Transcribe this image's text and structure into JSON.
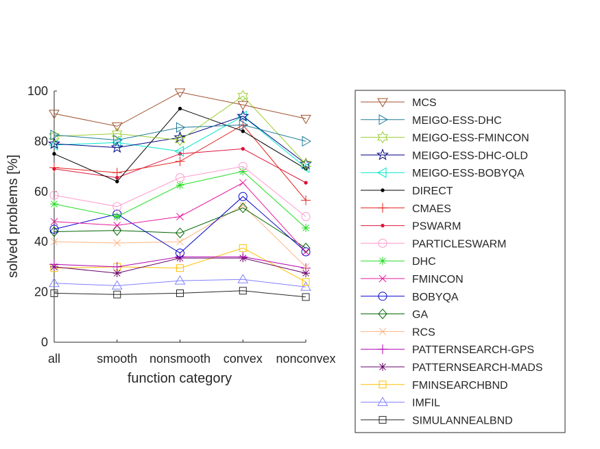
{
  "chart_data": {
    "type": "line",
    "title": "",
    "xlabel": "function category",
    "ylabel": "solved problems [%]",
    "categories": [
      "all",
      "smooth",
      "nonsmooth",
      "convex",
      "nonconvex"
    ],
    "ylim": [
      0,
      100
    ],
    "yticks": [
      0,
      20,
      40,
      60,
      80,
      100
    ],
    "grid": false,
    "legend_placement": "right outside",
    "series": [
      {
        "name": "MCS",
        "color": "#A0522D",
        "marker": "triangle-down",
        "values": [
          91,
          86,
          99.5,
          94.5,
          89
        ]
      },
      {
        "name": "MEIGO-ESS-DHC",
        "color": "#1F7A99",
        "marker": "triangle-right",
        "values": [
          82.5,
          80.5,
          85.5,
          86.5,
          80
        ]
      },
      {
        "name": "MEIGO-ESS-FMINCON",
        "color": "#9ACD32",
        "marker": "hexagram",
        "values": [
          82,
          83,
          80.5,
          98,
          71
        ]
      },
      {
        "name": "MEIGO-ESS-DHC-OLD",
        "color": "#000080",
        "marker": "pentagram",
        "values": [
          79,
          77.5,
          81.5,
          90,
          71
        ]
      },
      {
        "name": "MEIGO-ESS-BOBYQA",
        "color": "#00E6CC",
        "marker": "triangle-left",
        "values": [
          78.5,
          79.5,
          76,
          90,
          69.5
        ]
      },
      {
        "name": "DIRECT",
        "color": "#000000",
        "marker": "point",
        "values": [
          75,
          64,
          93,
          84,
          69
        ]
      },
      {
        "name": "CMAES",
        "color": "#E0201B",
        "marker": "plus",
        "values": [
          69.5,
          67.5,
          72,
          86.5,
          56.5
        ]
      },
      {
        "name": "PSWARM",
        "color": "#DC143C",
        "marker": "point",
        "values": [
          69,
          65.5,
          75,
          77,
          63.5
        ]
      },
      {
        "name": "PARTICLESWARM",
        "color": "#FF99CC",
        "marker": "circle",
        "values": [
          58.5,
          54,
          65.5,
          70,
          50
        ]
      },
      {
        "name": "DHC",
        "color": "#22DD22",
        "marker": "asterisk",
        "values": [
          55,
          50,
          62.5,
          68,
          45.5
        ]
      },
      {
        "name": "FMINCON",
        "color": "#E6199E",
        "marker": "cross",
        "values": [
          48,
          46.5,
          50,
          63.5,
          36
        ]
      },
      {
        "name": "BOBYQA",
        "color": "#0000CC",
        "marker": "circle",
        "values": [
          45,
          51,
          35.5,
          58,
          36
        ]
      },
      {
        "name": "GA",
        "color": "#006400",
        "marker": "diamond",
        "values": [
          44,
          44.5,
          43.5,
          53.5,
          37.5
        ]
      },
      {
        "name": "RCS",
        "color": "#FFB380",
        "marker": "cross",
        "values": [
          40,
          39.5,
          40,
          54.5,
          30
        ]
      },
      {
        "name": "PATTERNSEARCH-GPS",
        "color": "#B000B0",
        "marker": "plus",
        "values": [
          31,
          30,
          34,
          34,
          29.5
        ]
      },
      {
        "name": "PATTERNSEARCH-MADS",
        "color": "#660066",
        "marker": "asterisk",
        "values": [
          30,
          27.5,
          33.5,
          33.5,
          27.5
        ]
      },
      {
        "name": "FMINSEARCHBND",
        "color": "#FFC000",
        "marker": "square",
        "values": [
          29.5,
          30,
          29.5,
          37.5,
          24
        ]
      },
      {
        "name": "IMFIL",
        "color": "#8080FF",
        "marker": "triangle-up",
        "values": [
          23.5,
          22.5,
          24.5,
          25,
          22
        ]
      },
      {
        "name": "SIMULANNEALBND",
        "color": "#262626",
        "marker": "square",
        "values": [
          19.5,
          19,
          19.5,
          20.5,
          18
        ]
      }
    ]
  }
}
